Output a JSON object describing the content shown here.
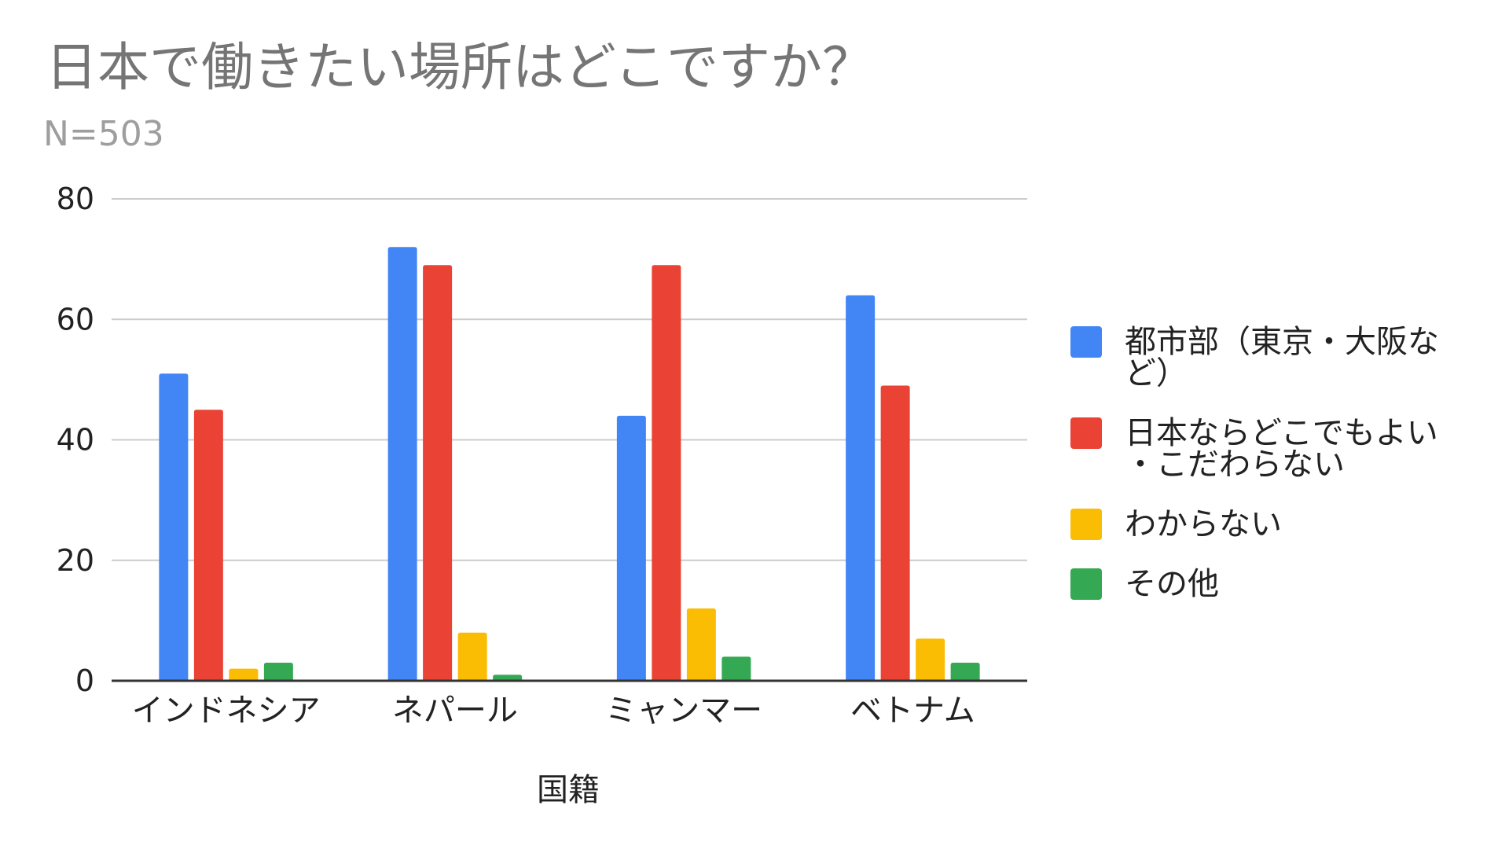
{
  "chart_data": {
    "type": "bar",
    "title": "日本で働きたい場所はどこですか？",
    "subtitle": "N=503",
    "xlabel": "国籍",
    "ylabel": "",
    "categories": [
      "インドネシア",
      "ネパール",
      "ミャンマー",
      "ベトナム"
    ],
    "series": [
      {
        "name": "都市部（東京・大阪など）",
        "legend_lines": [
          "都市部（東京・大阪な",
          "ど）"
        ],
        "color": "#4285F4",
        "values": [
          51,
          72,
          44,
          64
        ]
      },
      {
        "name": "日本ならどこでもよい・こだわらない",
        "legend_lines": [
          "日本ならどこでもよい",
          "・こだわらない"
        ],
        "color": "#EA4335",
        "values": [
          45,
          69,
          69,
          49
        ]
      },
      {
        "name": "わからない",
        "legend_lines": [
          "わからない"
        ],
        "color": "#FBBC04",
        "values": [
          2,
          8,
          12,
          7
        ]
      },
      {
        "name": "その他",
        "legend_lines": [
          "その他"
        ],
        "color": "#34A853",
        "values": [
          3,
          1,
          4,
          3
        ]
      }
    ],
    "ylim": [
      0,
      80
    ],
    "yticks": [
      0,
      20,
      40,
      60,
      80
    ],
    "grid": true,
    "legend_position": "right"
  }
}
